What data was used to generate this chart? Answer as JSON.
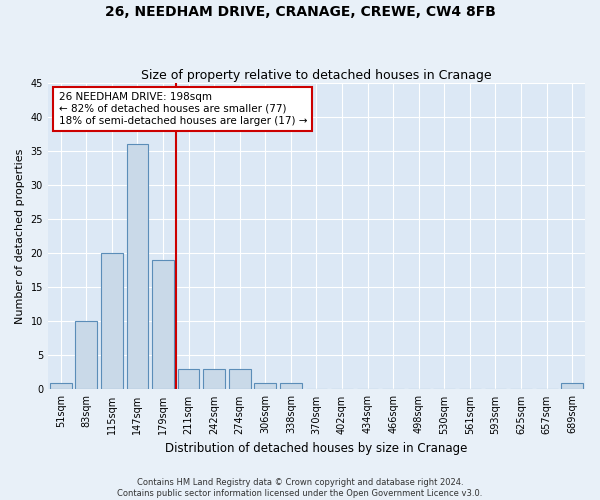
{
  "title": "26, NEEDHAM DRIVE, CRANAGE, CREWE, CW4 8FB",
  "subtitle": "Size of property relative to detached houses in Cranage",
  "xlabel": "Distribution of detached houses by size in Cranage",
  "ylabel": "Number of detached properties",
  "bin_labels": [
    "51sqm",
    "83sqm",
    "115sqm",
    "147sqm",
    "179sqm",
    "211sqm",
    "242sqm",
    "274sqm",
    "306sqm",
    "338sqm",
    "370sqm",
    "402sqm",
    "434sqm",
    "466sqm",
    "498sqm",
    "530sqm",
    "561sqm",
    "593sqm",
    "625sqm",
    "657sqm",
    "689sqm"
  ],
  "bar_values": [
    1,
    10,
    20,
    36,
    19,
    3,
    3,
    3,
    1,
    1,
    0,
    0,
    0,
    0,
    0,
    0,
    0,
    0,
    0,
    0,
    1
  ],
  "bar_color": "#c9d9e8",
  "bar_edgecolor": "#5b8db8",
  "vline_x": 4.5,
  "vline_color": "#cc0000",
  "annotation_text": "26 NEEDHAM DRIVE: 198sqm\n← 82% of detached houses are smaller (77)\n18% of semi-detached houses are larger (17) →",
  "annotation_box_edgecolor": "#cc0000",
  "annotation_box_facecolor": "white",
  "ylim": [
    0,
    45
  ],
  "yticks": [
    0,
    5,
    10,
    15,
    20,
    25,
    30,
    35,
    40,
    45
  ],
  "footer": "Contains HM Land Registry data © Crown copyright and database right 2024.\nContains public sector information licensed under the Open Government Licence v3.0.",
  "background_color": "#e8f0f8",
  "plot_background": "#dce8f5",
  "title_fontsize": 10,
  "subtitle_fontsize": 9,
  "ylabel_fontsize": 8,
  "xlabel_fontsize": 8.5,
  "annot_fontsize": 7.5,
  "tick_fontsize": 7,
  "footer_fontsize": 6
}
